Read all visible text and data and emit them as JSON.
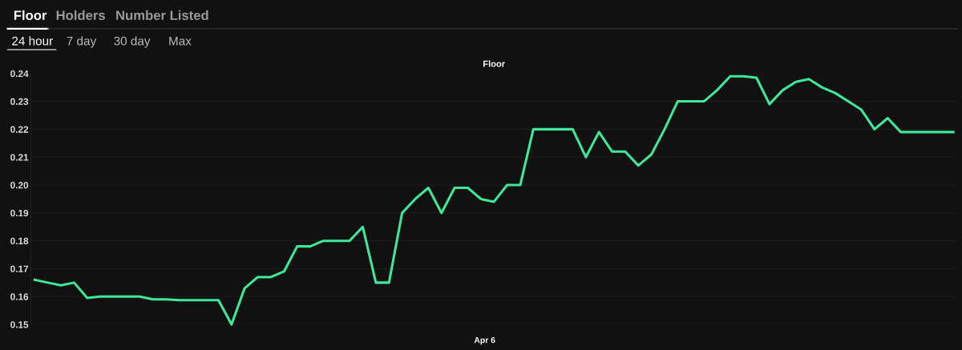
{
  "chart_data": {
    "type": "line",
    "title": "Floor",
    "categories": [
      null,
      null,
      null,
      null,
      null,
      null,
      null,
      null,
      null,
      null,
      null,
      null,
      null,
      null,
      null,
      null,
      null,
      null,
      null,
      null,
      null,
      null,
      null,
      null,
      null,
      null,
      null,
      null,
      null,
      null,
      null,
      null,
      null,
      null,
      null,
      null,
      null,
      null,
      null,
      null,
      null,
      null,
      null,
      null,
      null,
      null,
      null,
      null,
      null,
      null,
      null,
      null,
      null,
      null,
      null,
      null,
      null,
      null,
      null,
      null,
      null,
      null,
      null,
      null,
      null,
      null,
      null,
      null,
      null,
      null,
      null
    ],
    "series": [
      {
        "color": "#3ee89a",
        "values": [
          0.166,
          0.165,
          0.164,
          0.165,
          0.1595,
          0.16,
          0.16,
          0.16,
          0.16,
          0.159,
          0.159,
          0.1587,
          0.1587,
          0.1587,
          0.1587,
          0.15,
          0.163,
          0.167,
          0.167,
          0.169,
          0.178,
          0.178,
          0.18,
          0.18,
          0.18,
          0.185,
          0.165,
          0.165,
          0.19,
          0.195,
          0.199,
          0.19,
          0.199,
          0.199,
          0.195,
          0.194,
          0.2,
          0.2,
          0.22,
          0.22,
          0.22,
          0.22,
          0.21,
          0.219,
          0.212,
          0.212,
          0.207,
          0.211,
          0.22,
          0.23,
          0.23,
          0.23,
          0.234,
          0.239,
          0.239,
          0.2385,
          0.229,
          0.234,
          0.237,
          0.238,
          0.235,
          0.233,
          0.23,
          0.227,
          0.22,
          0.224,
          0.219,
          0.219,
          0.219,
          0.219,
          0.219
        ]
      }
    ],
    "ylim": [
      0.15,
      0.24
    ],
    "yticks": [
      {
        "value": 0.15,
        "label": "0.15"
      },
      {
        "value": 0.16,
        "label": "0.16"
      },
      {
        "value": 0.17,
        "label": "0.17"
      },
      {
        "value": 0.18,
        "label": "0.18"
      },
      {
        "value": 0.19,
        "label": "0.19"
      },
      {
        "value": 0.2,
        "label": "0.20"
      },
      {
        "value": 0.21,
        "label": "0.21"
      },
      {
        "value": 0.22,
        "label": "0.22"
      },
      {
        "value": 0.23,
        "label": "0.23"
      },
      {
        "value": 0.24,
        "label": "0.24"
      }
    ],
    "grid": "y",
    "marker": "none",
    "line_style": "solid",
    "annotations": [
      "Floor",
      "Holders",
      "Number Listed",
      "24 hour",
      "7 day",
      "30 day",
      "Max",
      "Apr 6"
    ]
  }
}
